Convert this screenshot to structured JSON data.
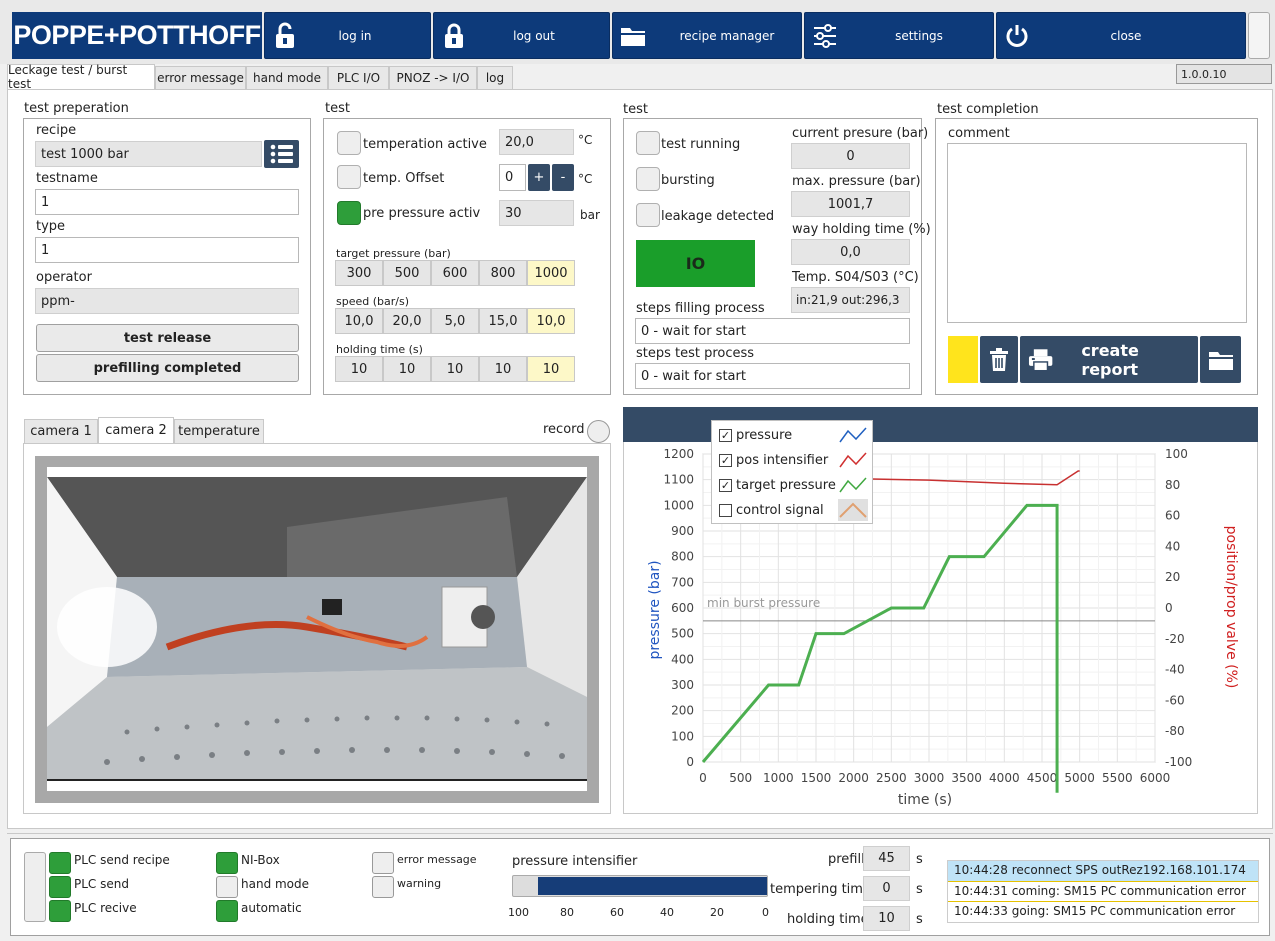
{
  "header": {
    "logo": "POPPE+POTTHOFF",
    "buttons": {
      "login": "log in",
      "logout": "log out",
      "recipe_manager": "recipe manager",
      "settings": "settings",
      "close": "close"
    }
  },
  "tabs": [
    "Leckage test / burst test",
    "error message",
    "hand mode",
    "PLC I/O",
    "PNOZ -> I/O",
    "log"
  ],
  "version": "1.0.0.10",
  "prep": {
    "title": "test preperation",
    "recipe_label": "recipe",
    "recipe_value": "test 1000 bar",
    "testname_label": "testname",
    "testname_value": "1",
    "type_label": "type",
    "type_value": "1",
    "operator_label": "operator",
    "operator_value": "ppm-",
    "test_release": "test release",
    "prefilling_completed": "prefilling completed"
  },
  "test1": {
    "title": "test",
    "temp_active_label": "temperation active",
    "temp_active_value": "20,0",
    "temp_unit": "°C",
    "temp_offset_label": "temp. Offset",
    "temp_offset_value": "0",
    "plus": "+",
    "minus": "-",
    "offset_unit": "°C",
    "prepressure_label": "pre pressure activ",
    "prepressure_value": "30",
    "prepressure_unit": "bar",
    "target_label": "target pressure (bar)",
    "target_values": [
      "300",
      "500",
      "600",
      "800",
      "1000"
    ],
    "speed_label": "speed (bar/s)",
    "speed_values": [
      "10,0",
      "20,0",
      "5,0",
      "15,0",
      "10,0"
    ],
    "holding_label": "holding time (s)",
    "holding_values": [
      "10",
      "10",
      "10",
      "10",
      "10"
    ]
  },
  "test2": {
    "title": "test",
    "running": "test running",
    "bursting": "bursting",
    "leakage": "leakage detected",
    "io": "IO",
    "current_label": "current presure (bar)",
    "current_value": "0",
    "max_label": "max. pressure (bar)",
    "max_value": "1001,7",
    "way_label": "way holding time (%)",
    "way_value": "0,0",
    "temp_label": "Temp. S04/S03 (°C)",
    "temp_value": "in:21,9 out:296,3",
    "fill_label": "steps filling process",
    "fill_value": "0 - wait for start",
    "proc_label": "steps test process",
    "proc_value": "0 - wait for start"
  },
  "completion": {
    "title": "test completion",
    "comment_label": "comment",
    "create_report": "create report"
  },
  "camera": {
    "tabs": [
      "camera 1",
      "camera 2",
      "temperature"
    ],
    "record": "record"
  },
  "chart_data": {
    "type": "line",
    "xlabel": "time (s)",
    "ylabel": "pressure (bar)",
    "y2label": "position/prop valve (%)",
    "xlim": [
      0,
      6000
    ],
    "ylim": [
      0,
      1200
    ],
    "y2lim": [
      -100,
      100
    ],
    "xticks": [
      "0",
      "500",
      "1000",
      "1500",
      "2000",
      "2500",
      "3000",
      "3500",
      "4000",
      "4500",
      "5000",
      "5500",
      "6000"
    ],
    "yticks": [
      "0",
      "100",
      "200",
      "300",
      "400",
      "500",
      "600",
      "700",
      "800",
      "900",
      "1000",
      "1100",
      "1200"
    ],
    "y2ticks": [
      "100",
      "80",
      "60",
      "40",
      "20",
      "0",
      "-20",
      "-40",
      "-60",
      "-80",
      "-100"
    ],
    "annotation": "min burst pressure",
    "annotation_y": 550,
    "legend": [
      {
        "name": "pressure",
        "checked": true,
        "color": "#2060c0"
      },
      {
        "name": "pos intensifier",
        "checked": true,
        "color": "#d03030"
      },
      {
        "name": "target pressure",
        "checked": true,
        "color": "#40a840"
      },
      {
        "name": "control signal",
        "checked": false,
        "color": "#e0a070"
      }
    ],
    "series": [
      {
        "name": "target pressure",
        "x": [
          0,
          870,
          1270,
          1500,
          1870,
          2500,
          2930,
          3270,
          3730,
          4300,
          4700,
          4700,
          4700
        ],
        "y": [
          0,
          300,
          300,
          500,
          500,
          600,
          600,
          800,
          800,
          1000,
          1000,
          0,
          -120
        ]
      },
      {
        "name": "pos intensifier",
        "x": [
          1000,
          2000,
          3000,
          4000,
          4700,
          4980,
          5000
        ],
        "y": [
          84,
          84,
          83,
          81,
          80,
          89,
          89
        ],
        "axis": "y2"
      }
    ]
  },
  "status": {
    "plc_send_recipe": "PLC send recipe",
    "plc_send": "PLC send",
    "plc_recive": "PLC recive",
    "nibox": "NI-Box",
    "hand_mode": "hand mode",
    "automatic": "automatic",
    "error_message": "error message",
    "warning": "warning",
    "intensifier_label": "pressure intensifier",
    "intensifier_level": 0.9,
    "scale": [
      "100",
      "80",
      "60",
      "40",
      "20",
      "0"
    ],
    "prefill_label": "prefill",
    "prefill_value": "45",
    "tempering_label": "tempering time",
    "tempering_value": "0",
    "holding_label": "holding time",
    "holding_value": "10",
    "unit_s": "s",
    "log": [
      "10:44:28 reconnect SPS outRez192.168.101.174",
      "10:44:31 coming: SM15 PC communication error",
      "10:44:33 going: SM15 PC communication error"
    ]
  }
}
